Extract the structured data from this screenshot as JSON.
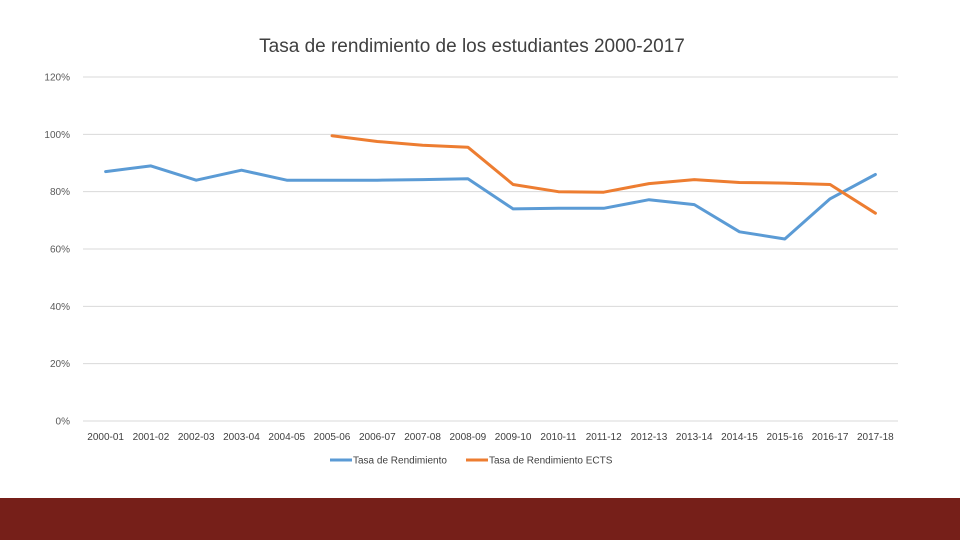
{
  "colors": {
    "series1": "#5b9bd5",
    "series2": "#ed7d31",
    "grid": "#d9d9d9",
    "footer": "#761f19"
  },
  "chart_data": {
    "type": "line",
    "title": "Tasa de rendimiento de los estudiantes 2000-2017",
    "xlabel": "",
    "ylabel": "",
    "ylim": [
      0,
      1.2
    ],
    "yticks": [
      {
        "value": 0,
        "label": "0%"
      },
      {
        "value": 0.2,
        "label": "20%"
      },
      {
        "value": 0.4,
        "label": "40%"
      },
      {
        "value": 0.6,
        "label": "60%"
      },
      {
        "value": 0.8,
        "label": "80%"
      },
      {
        "value": 1.0,
        "label": "100%"
      },
      {
        "value": 1.2,
        "label": "120%"
      }
    ],
    "grid": true,
    "legend_position": "bottom",
    "categories": [
      "2000-01",
      "2001-02",
      "2002-03",
      "2003-04",
      "2004-05",
      "2005-06",
      "2006-07",
      "2007-08",
      "2008-09",
      "2009-10",
      "2010-11",
      "2011-12",
      "2012-13",
      "2013-14",
      "2014-15",
      "2015-16",
      "2016-17",
      "2017-18"
    ],
    "series": [
      {
        "name": "Tasa de Rendimiento",
        "color_key": "series1",
        "values": [
          0.87,
          0.89,
          0.84,
          0.875,
          0.84,
          0.84,
          0.84,
          0.842,
          0.845,
          0.74,
          0.742,
          0.742,
          0.772,
          0.755,
          0.66,
          0.635,
          0.775,
          0.86
        ]
      },
      {
        "name": "Tasa de Rendimiento ECTS",
        "color_key": "series2",
        "values": [
          null,
          null,
          null,
          null,
          null,
          0.995,
          0.975,
          0.962,
          0.955,
          0.825,
          0.8,
          0.798,
          0.828,
          0.842,
          0.832,
          0.83,
          0.825,
          0.725
        ]
      }
    ]
  }
}
